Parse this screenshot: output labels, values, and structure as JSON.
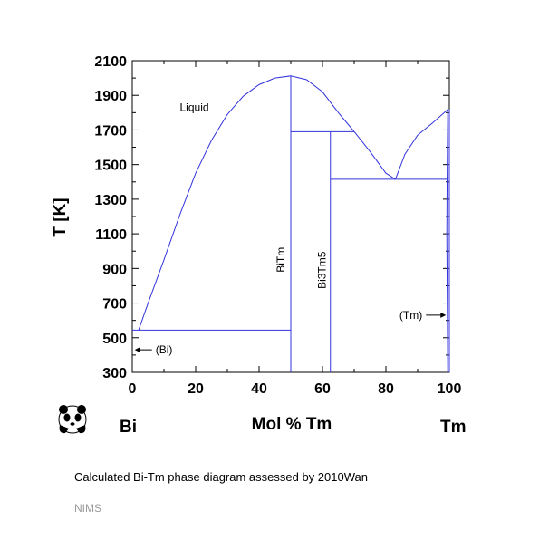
{
  "chart_data": {
    "type": "line",
    "title": "",
    "xlabel": "Mol % Tm",
    "ylabel": "T [K]",
    "xlim": [
      0,
      100
    ],
    "ylim": [
      300,
      2100
    ],
    "x_ticks": [
      0,
      20,
      40,
      60,
      80,
      100
    ],
    "y_ticks": [
      300,
      500,
      700,
      900,
      1100,
      1300,
      1500,
      1700,
      1900,
      2100
    ],
    "grid": false,
    "line_color": "#3333dd",
    "element_left": "Bi",
    "element_right": "Tm",
    "region_labels": [
      {
        "text": "Liquid",
        "x": 15,
        "y": 1810
      },
      {
        "text": "BiTm",
        "x": 48,
        "y": 950,
        "rotated": true
      },
      {
        "text": "Bi3Tm5",
        "x": 61,
        "y": 890,
        "rotated": true
      }
    ],
    "arrow_labels": [
      {
        "text": "(Bi)",
        "x": 0.5,
        "y": 430,
        "direction": "left"
      },
      {
        "text": "(Tm)",
        "x": 99.5,
        "y": 630,
        "direction": "right"
      }
    ],
    "series": [
      {
        "values": [
          [
            0,
            544
          ],
          [
            2,
            544
          ],
          [
            2,
            544
          ],
          [
            5,
            700
          ],
          [
            10,
            950
          ],
          [
            15,
            1210
          ],
          [
            20,
            1450
          ],
          [
            25,
            1640
          ],
          [
            30,
            1790
          ],
          [
            35,
            1895
          ],
          [
            40,
            1962
          ],
          [
            45,
            2000
          ],
          [
            50,
            2012
          ],
          [
            55,
            1990
          ],
          [
            60,
            1920
          ],
          [
            65,
            1800
          ],
          [
            70,
            1690
          ]
        ]
      },
      {
        "values": [
          [
            70,
            1690
          ],
          [
            75,
            1575
          ],
          [
            80,
            1450
          ],
          [
            83,
            1415
          ]
        ]
      },
      {
        "values": [
          [
            83,
            1415
          ],
          [
            86,
            1560
          ],
          [
            90,
            1670
          ],
          [
            95,
            1745
          ],
          [
            99.5,
            1818
          ]
        ]
      },
      {
        "values": [
          [
            2,
            544
          ],
          [
            50,
            544
          ]
        ]
      },
      {
        "values": [
          [
            50,
            2012
          ],
          [
            50,
            300
          ]
        ]
      },
      {
        "values": [
          [
            50,
            1690
          ],
          [
            70,
            1690
          ]
        ]
      },
      {
        "values": [
          [
            62.5,
            1690
          ],
          [
            62.5,
            300
          ]
        ]
      },
      {
        "values": [
          [
            62.5,
            1415
          ],
          [
            99.3,
            1415
          ]
        ]
      },
      {
        "values": [
          [
            99.5,
            1818
          ],
          [
            99.3,
            1415
          ],
          [
            99.2,
            1100
          ],
          [
            99.5,
            300
          ]
        ]
      },
      {
        "values": [
          [
            100,
            1818
          ],
          [
            100,
            300
          ]
        ]
      }
    ]
  },
  "caption": "Calculated Bi-Tm phase diagram assessed by 2010Wan",
  "footer": "NIMS",
  "logo": "panda-logo"
}
